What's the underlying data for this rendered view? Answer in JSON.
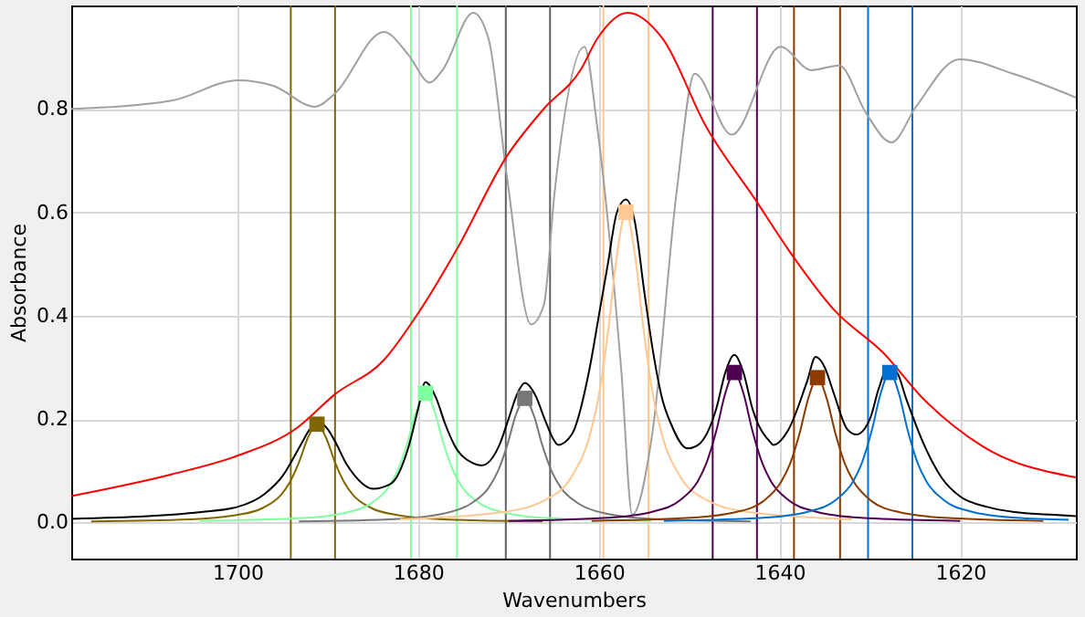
{
  "chart_data": {
    "type": "line",
    "xlabel": "Wavenumbers",
    "ylabel": "Absorbance",
    "xlim": [
      1718.4,
      1607.2
    ],
    "xticks": [
      1700,
      1680,
      1660,
      1640,
      1620
    ],
    "ylim": [
      -0.07,
      1.0
    ],
    "yticks": [
      {
        "value": 0,
        "label": "0.0"
      },
      0.2,
      0.4,
      0.6,
      0.8
    ],
    "grid": true,
    "marker": "none",
    "line_style": "solid",
    "ref_lines": [
      {
        "axis": "x",
        "value": 1694.1,
        "color": "#806600"
      },
      {
        "axis": "x",
        "value": 1689.2,
        "color": "#806600"
      },
      {
        "axis": "x",
        "value": 1680.8,
        "color": "#80ffa0"
      },
      {
        "axis": "x",
        "value": 1675.7,
        "color": "#80ffa0"
      },
      {
        "axis": "x",
        "value": 1670.3,
        "color": "#606060"
      },
      {
        "axis": "x",
        "value": 1665.4,
        "color": "#606060"
      },
      {
        "axis": "x",
        "value": 1659.5,
        "color": "#ffc890"
      },
      {
        "axis": "x",
        "value": 1654.5,
        "color": "#ffc890"
      },
      {
        "axis": "x",
        "value": 1647.4,
        "color": "#500050"
      },
      {
        "axis": "x",
        "value": 1642.5,
        "color": "#500050"
      },
      {
        "axis": "x",
        "value": 1638.4,
        "color": "#8b3a00"
      },
      {
        "axis": "x",
        "value": 1633.3,
        "color": "#8b3a00"
      },
      {
        "axis": "x",
        "value": 1630.2,
        "color": "#0070d0"
      },
      {
        "axis": "x",
        "value": 1625.3,
        "color": "#0070d0"
      }
    ],
    "series": [
      {
        "color": "#a0a0a0",
        "x": [
          1718.4,
          1707.3,
          1700,
          1696.1,
          1691.4,
          1689.3,
          1683.8,
          1681.1,
          1678.7,
          1677.3,
          1673.9,
          1672.2,
          1670.2,
          1667.5,
          1666.1,
          1664.9,
          1661.6,
          1660.2,
          1657.5,
          1656.3,
          1654.1,
          1651.4,
          1649.4,
          1645.3,
          1639.9,
          1636.5,
          1633.4,
          1630.4,
          1627.6,
          1624.9,
          1620.1,
          1614,
          1607.2
        ],
        "values": [
          0.8,
          0.816,
          0.855,
          0.845,
          0.804,
          0.828,
          0.949,
          0.905,
          0.851,
          0.875,
          0.986,
          0.935,
          0.672,
          0.383,
          0.42,
          0.638,
          0.92,
          0.768,
          0.29,
          0.015,
          0.17,
          0.638,
          0.868,
          0.75,
          0.92,
          0.875,
          0.884,
          0.791,
          0.735,
          0.804,
          0.896,
          0.867,
          0.822
        ]
      },
      {
        "color": "#ff0000",
        "x": [
          1718.4,
          1707.3,
          1700,
          1693.4,
          1689.2,
          1683.8,
          1679.8,
          1675.7,
          1670.2,
          1666.1,
          1662,
          1660.2,
          1656.8,
          1652.9,
          1648.2,
          1642.7,
          1638.6,
          1633.9,
          1628.4,
          1624.3,
          1617.5,
          1607.2
        ],
        "values": [
          0.051,
          0.093,
          0.129,
          0.183,
          0.248,
          0.314,
          0.41,
          0.529,
          0.708,
          0.8,
          0.876,
          0.935,
          0.986,
          0.935,
          0.768,
          0.625,
          0.517,
          0.41,
          0.326,
          0.243,
          0.147,
          0.087
        ]
      },
      {
        "color": "#806600",
        "x": [
          1716.2,
          1705.2,
          1700.2,
          1697.2,
          1695.2,
          1694.2,
          1693.2,
          1692.2,
          1691.2,
          1690.2,
          1689.2,
          1688.2,
          1687.2,
          1685.2,
          1682.2,
          1677.2,
          1666.2
        ],
        "values": [
          0.002,
          0.006,
          0.014,
          0.028,
          0.053,
          0.078,
          0.116,
          0.164,
          0.19,
          0.164,
          0.116,
          0.078,
          0.053,
          0.028,
          0.014,
          0.006,
          0.002
        ]
      },
      {
        "color": "#80ffa0",
        "x": [
          1704.2,
          1693.2,
          1688.2,
          1685.2,
          1683.2,
          1682.2,
          1681.2,
          1680.2,
          1679.2,
          1678.2,
          1677.2,
          1676.2,
          1675.2,
          1673.2,
          1670.2,
          1665.2,
          1654.2
        ],
        "values": [
          0.003,
          0.008,
          0.018,
          0.037,
          0.07,
          0.103,
          0.153,
          0.216,
          0.25,
          0.216,
          0.153,
          0.103,
          0.07,
          0.037,
          0.018,
          0.008,
          0.003
        ]
      },
      {
        "color": "#777777",
        "x": [
          1693.2,
          1682.2,
          1677.2,
          1674.2,
          1672.2,
          1671.2,
          1670.2,
          1669.2,
          1668.2,
          1667.2,
          1666.2,
          1665.2,
          1664.2,
          1662.2,
          1659.2,
          1654.2,
          1643.2
        ],
        "values": [
          0.002,
          0.007,
          0.017,
          0.036,
          0.067,
          0.098,
          0.146,
          0.207,
          0.24,
          0.207,
          0.146,
          0.098,
          0.067,
          0.036,
          0.017,
          0.007,
          0.002
        ]
      },
      {
        "color": "#ffc890",
        "x": [
          1682,
          1671,
          1666,
          1663,
          1661,
          1660,
          1659,
          1658,
          1657,
          1656,
          1655,
          1654,
          1653,
          1651,
          1648,
          1643,
          1632
        ],
        "values": [
          0.006,
          0.019,
          0.043,
          0.089,
          0.169,
          0.246,
          0.366,
          0.517,
          0.6,
          0.517,
          0.366,
          0.246,
          0.169,
          0.089,
          0.043,
          0.019,
          0.006
        ]
      },
      {
        "color": "#500050",
        "x": [
          1670,
          1659,
          1654,
          1651,
          1649,
          1648,
          1647,
          1646,
          1645,
          1644,
          1643,
          1642,
          1641,
          1639,
          1636,
          1631,
          1620
        ],
        "values": [
          0.003,
          0.009,
          0.021,
          0.043,
          0.081,
          0.119,
          0.177,
          0.25,
          0.29,
          0.25,
          0.177,
          0.119,
          0.081,
          0.043,
          0.021,
          0.009,
          0.003
        ]
      },
      {
        "color": "#8b3a00",
        "x": [
          1660.8,
          1649.8,
          1644.8,
          1641.8,
          1639.8,
          1638.8,
          1637.8,
          1636.8,
          1635.8,
          1634.8,
          1633.8,
          1632.8,
          1631.8,
          1629.8,
          1626.8,
          1621.8,
          1610.8
        ],
        "values": [
          0.003,
          0.009,
          0.02,
          0.041,
          0.079,
          0.115,
          0.171,
          0.241,
          0.28,
          0.241,
          0.171,
          0.115,
          0.079,
          0.041,
          0.02,
          0.009,
          0.003
        ]
      },
      {
        "color": "#0070d0",
        "x": [
          1652.8,
          1641.8,
          1636.8,
          1633.8,
          1631.8,
          1630.8,
          1629.8,
          1628.8,
          1627.8,
          1626.8,
          1625.8,
          1624.8,
          1623.8,
          1621.8,
          1618.8,
          1613.8,
          1608
        ],
        "values": [
          0.003,
          0.009,
          0.021,
          0.043,
          0.081,
          0.119,
          0.177,
          0.25,
          0.29,
          0.25,
          0.177,
          0.119,
          0.081,
          0.043,
          0.021,
          0.009,
          0.005
        ]
      },
      {
        "color": "#000000",
        "x": [
          1718.4,
          1710,
          1704,
          1700,
          1697,
          1695,
          1693,
          1692,
          1691,
          1690,
          1689,
          1688,
          1687,
          1685,
          1683,
          1681,
          1680,
          1679.2,
          1678,
          1677,
          1676,
          1674,
          1673,
          1671,
          1670,
          1669,
          1668.2,
          1667,
          1666,
          1665,
          1664.5,
          1663,
          1661,
          1660,
          1659,
          1658,
          1657,
          1656,
          1655,
          1654,
          1653,
          1652,
          1650.2,
          1649,
          1647,
          1646,
          1645,
          1644,
          1643,
          1641,
          1640.7,
          1639,
          1637,
          1636,
          1635,
          1634,
          1632.5,
          1631.5,
          1630,
          1629,
          1628,
          1627,
          1626,
          1624,
          1622,
          1620,
          1617,
          1614,
          1610,
          1607.2
        ],
        "values": [
          0.007,
          0.012,
          0.02,
          0.03,
          0.055,
          0.09,
          0.15,
          0.18,
          0.195,
          0.18,
          0.15,
          0.115,
          0.09,
          0.065,
          0.075,
          0.15,
          0.22,
          0.271,
          0.24,
          0.19,
          0.15,
          0.115,
          0.11,
          0.15,
          0.2,
          0.25,
          0.27,
          0.245,
          0.2,
          0.16,
          0.15,
          0.17,
          0.3,
          0.4,
          0.5,
          0.6,
          0.625,
          0.58,
          0.45,
          0.33,
          0.24,
          0.19,
          0.143,
          0.15,
          0.22,
          0.29,
          0.324,
          0.29,
          0.22,
          0.155,
          0.15,
          0.18,
          0.27,
          0.32,
          0.3,
          0.25,
          0.18,
          0.17,
          0.2,
          0.26,
          0.3,
          0.29,
          0.24,
          0.15,
          0.085,
          0.05,
          0.03,
          0.02,
          0.015,
          0.012
        ]
      },
      {
        "type": "scatter",
        "marker": "square",
        "x": [
          1691.2,
          1679.2,
          1668.2,
          1657,
          1645,
          1635.8,
          1627.8
        ],
        "values": [
          0.19,
          0.25,
          0.24,
          0.6,
          0.29,
          0.28,
          0.29
        ],
        "colors": [
          "#806600",
          "#80ffa0",
          "#777777",
          "#ffc890",
          "#500050",
          "#8b3a00",
          "#0070d0"
        ]
      }
    ]
  }
}
